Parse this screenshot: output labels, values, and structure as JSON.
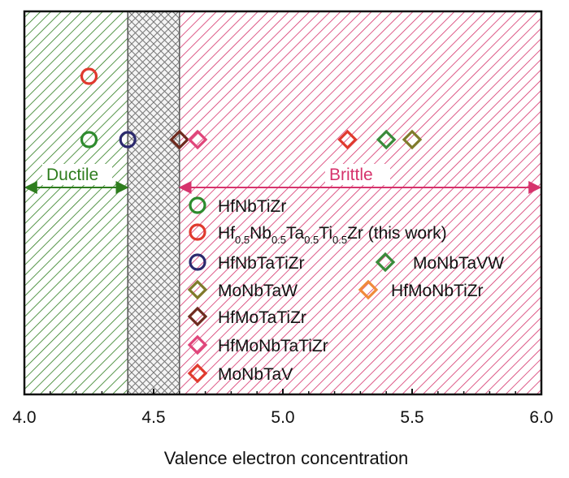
{
  "chart_data": {
    "type": "scatter",
    "xlabel": "Valence electron concentration",
    "xlim": [
      4.0,
      6.0
    ],
    "xticks": [
      "4.0",
      "4.5",
      "5.0",
      "5.5",
      "6.0"
    ],
    "regions": [
      {
        "name": "Ductile",
        "x_start": 4.0,
        "x_end": 4.4,
        "color": "#2e7d1e",
        "pattern": "diagonal"
      },
      {
        "name": "",
        "x_start": 4.4,
        "x_end": 4.6,
        "color": "#888888",
        "pattern": "crosshatch"
      },
      {
        "name": "Brittle",
        "x_start": 4.6,
        "x_end": 6.0,
        "color": "#d6336c",
        "pattern": "diagonal"
      }
    ],
    "ductile_label": "Ductile",
    "brittle_label": "Brittle",
    "series": [
      {
        "name": "HfNbTiZr",
        "marker": "circle",
        "color": "#2e8b2e",
        "points": [
          {
            "x": 4.25,
            "y": 1
          }
        ]
      },
      {
        "name": "Hf0.5Nb0.5Ta0.5Ti0.5Zr (this work)",
        "marker": "circle",
        "color": "#e03a2e",
        "points": [
          {
            "x": 4.25,
            "y": 2
          }
        ]
      },
      {
        "name": "HfNbTaTiZr",
        "marker": "circle",
        "color": "#2c2a6e",
        "points": [
          {
            "x": 4.4,
            "y": 1
          }
        ]
      },
      {
        "name": "MoNbTaVW",
        "marker": "diamond",
        "color": "#3a8a3a",
        "points": [
          {
            "x": 5.4,
            "y": 1
          }
        ]
      },
      {
        "name": "MoNbTaW",
        "marker": "diamond",
        "color": "#7f7a2a",
        "points": [
          {
            "x": 5.5,
            "y": 1
          }
        ]
      },
      {
        "name": "HfMoNbTiZr",
        "marker": "diamond",
        "color": "#f08a3a",
        "points": []
      },
      {
        "name": "HfMoTaTiZr",
        "marker": "diamond",
        "color": "#6e2a1e",
        "points": [
          {
            "x": 4.6,
            "y": 1
          }
        ]
      },
      {
        "name": "HfMoNbTaTiZr",
        "marker": "diamond",
        "color": "#e0457a",
        "points": [
          {
            "x": 4.67,
            "y": 1
          }
        ]
      },
      {
        "name": "MoNbTaV",
        "marker": "diamond",
        "color": "#e03a2e",
        "points": [
          {
            "x": 5.25,
            "y": 1
          }
        ]
      }
    ],
    "legend": [
      {
        "text": "HfNbTiZr",
        "marker": "circle",
        "color": "#2e8b2e"
      },
      {
        "text": "",
        "formula": [
          "Hf",
          "0.5",
          "Nb",
          "0.5",
          "Ta",
          "0.5",
          "Ti",
          "0.5",
          "Zr"
        ],
        "suffix": " (this work)",
        "marker": "circle",
        "color": "#e03a2e"
      },
      {
        "text": "HfNbTaTiZr",
        "marker": "circle",
        "color": "#2c2a6e"
      },
      {
        "text": "MoNbTaVW",
        "marker": "diamond",
        "color": "#3a8a3a"
      },
      {
        "text": "MoNbTaW",
        "marker": "diamond",
        "color": "#7f7a2a"
      },
      {
        "text": "HfMoNbTiZr",
        "marker": "diamond",
        "color": "#f08a3a"
      },
      {
        "text": "HfMoTaTiZr",
        "marker": "diamond",
        "color": "#6e2a1e"
      },
      {
        "text": "HfMoNbTaTiZr",
        "marker": "diamond",
        "color": "#e0457a"
      },
      {
        "text": "MoNbTaV",
        "marker": "diamond",
        "color": "#e03a2e"
      }
    ],
    "legend_placement": "center-right",
    "grid": false
  }
}
